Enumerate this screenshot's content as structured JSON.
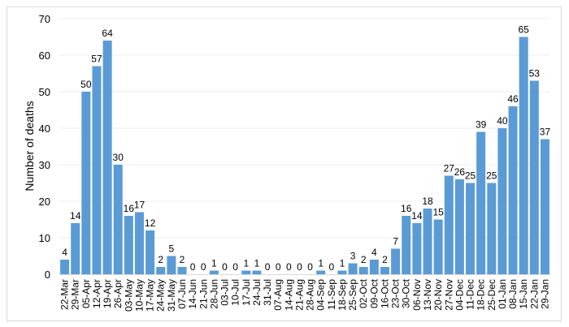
{
  "chart_data": {
    "type": "bar",
    "title": "",
    "xlabel": "",
    "ylabel": "Number of deaths",
    "ylim": [
      0,
      70
    ],
    "yticks": [
      0,
      10,
      20,
      30,
      40,
      50,
      60,
      70
    ],
    "grid": true,
    "bar_color": "#5b9bd5",
    "categories": [
      "22-Mar",
      "29-Mar",
      "05-Apr",
      "12-Apr",
      "19-Apr",
      "26-Apr",
      "03-May",
      "10-May",
      "17-May",
      "24-May",
      "31-May",
      "07-Jun",
      "14-Jun",
      "21-Jun",
      "28-Jun",
      "03-Jul",
      "10-Jul",
      "17-Jul",
      "24-Jul",
      "31-Jul",
      "07-Aug",
      "14-Aug",
      "21-Aug",
      "28-Aug",
      "04-Sep",
      "11-Sep",
      "18-Sep",
      "25-Sep",
      "02-Oct",
      "09-Oct",
      "16-Oct",
      "23-Oct",
      "30-Oct",
      "06-Nov",
      "13-Nov",
      "20-Nov",
      "27-Nov",
      "04-Dec",
      "11-Dec",
      "18-Dec",
      "25-Dec",
      "01-Jan",
      "08-Jan",
      "15-Jan",
      "22-Jan",
      "29-Jan"
    ],
    "values": [
      4,
      14,
      50,
      57,
      64,
      30,
      16,
      17,
      12,
      2,
      5,
      2,
      0,
      0,
      1,
      0,
      0,
      1,
      1,
      0,
      0,
      0,
      0,
      0,
      1,
      0,
      1,
      3,
      2,
      4,
      2,
      7,
      16,
      14,
      18,
      15,
      27,
      26,
      25,
      39,
      25,
      40,
      46,
      65,
      53,
      37
    ]
  }
}
